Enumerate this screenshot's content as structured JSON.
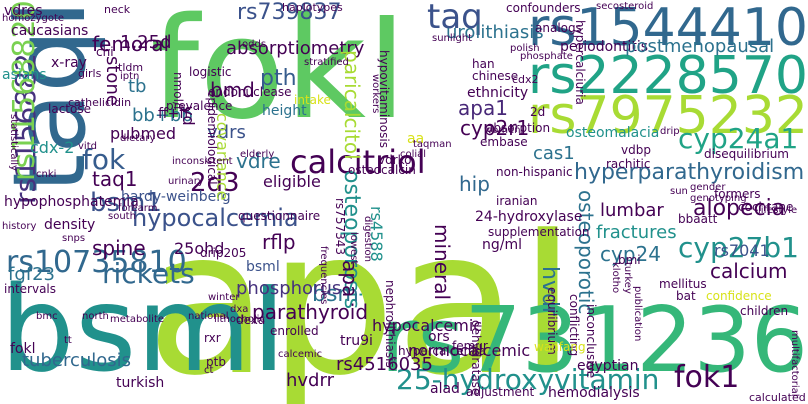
{
  "words": [
    {
      "text": "apaI",
      "color": "#a8db34"
    },
    {
      "text": "fokI",
      "color": "#5ec962"
    },
    {
      "text": "bsmI",
      "color": "#21918c"
    },
    {
      "text": "taqI",
      "color": "#31688e"
    },
    {
      "text": "rs731236",
      "color": "#35b779"
    },
    {
      "text": "rs1544410",
      "color": "#31688e"
    },
    {
      "text": "rs2228570",
      "color": "#20a386"
    },
    {
      "text": "rs7975232",
      "color": "#a8db34"
    },
    {
      "text": "calcitriol",
      "color": "#440154"
    },
    {
      "text": "25-hydroxyvitamin",
      "color": "#21918c"
    },
    {
      "text": "fok1",
      "color": "#440154"
    },
    {
      "text": "rs10735810",
      "color": "#31688e"
    },
    {
      "text": "rs1156882",
      "color": "#46327e"
    },
    {
      "text": "rs11568820",
      "color": "#7ad151"
    },
    {
      "text": "rickets",
      "color": "#31688e"
    },
    {
      "text": "cyp27b1",
      "color": "#21918c"
    },
    {
      "text": "cyp24a1",
      "color": "#20a386"
    },
    {
      "text": "alopecia",
      "color": "#440154"
    },
    {
      "text": "hyperparathyroidism",
      "color": "#31688e"
    },
    {
      "text": "taq",
      "color": "#3b528b"
    },
    {
      "text": "fok",
      "color": "#365c8d"
    },
    {
      "text": "2d3",
      "color": "#440154"
    },
    {
      "text": "bsm1",
      "color": "#3b528b"
    },
    {
      "text": "hypocalcemia",
      "color": "#3b528b"
    },
    {
      "text": "osteoporosis",
      "color": "#21918c"
    },
    {
      "text": "absorptiometry",
      "color": "#440154"
    },
    {
      "text": "paricalcitol",
      "color": "#a8db34"
    },
    {
      "text": "bsm",
      "color": "#2c728e"
    },
    {
      "text": "parathyroid",
      "color": "#440154"
    },
    {
      "text": "phosphorus",
      "color": "#46327e"
    },
    {
      "text": "tuberculosis",
      "color": "#31688e"
    },
    {
      "text": "rs4516035",
      "color": "#440154"
    },
    {
      "text": "hvdrr",
      "color": "#440154"
    },
    {
      "text": "apa1",
      "color": "#482878"
    },
    {
      "text": "apa",
      "color": "#440154"
    },
    {
      "text": "pth",
      "color": "#365c8d"
    },
    {
      "text": "bmd",
      "color": "#440154"
    },
    {
      "text": "femoral",
      "color": "#440154"
    },
    {
      "text": "1,25d",
      "color": "#440154"
    },
    {
      "text": "rs739837",
      "color": "#3b528b"
    },
    {
      "text": "urolithiasis",
      "color": "#2c728e"
    },
    {
      "text": "periodontitis",
      "color": "#440154"
    },
    {
      "text": "postmenopausal",
      "color": "#2c728e"
    },
    {
      "text": "cyp2r1",
      "color": "#440154"
    },
    {
      "text": "osteomalacia",
      "color": "#21918c"
    },
    {
      "text": "calcium",
      "color": "#440154"
    },
    {
      "text": "rs7041",
      "color": "#3b528b"
    },
    {
      "text": "fractures",
      "color": "#21918c"
    },
    {
      "text": "lumbar",
      "color": "#440154"
    },
    {
      "text": "cyp24",
      "color": "#2c728e"
    },
    {
      "text": "rs4588",
      "color": "#21918c"
    },
    {
      "text": "osteoporotic",
      "color": "#2c728e"
    },
    {
      "text": "vdrs",
      "color": "#3b528b"
    },
    {
      "text": "vdre",
      "color": "#2c728e"
    },
    {
      "text": "taq1",
      "color": "#440154"
    },
    {
      "text": "spine",
      "color": "#440154"
    },
    {
      "text": "rflp",
      "color": "#440154"
    },
    {
      "text": "hip",
      "color": "#31688e"
    },
    {
      "text": "mineral",
      "color": "#440154"
    },
    {
      "text": "eligible",
      "color": "#440154"
    },
    {
      "text": "hardy-weinberg",
      "color": "#3b528b"
    },
    {
      "text": "hypocalcemic",
      "color": "#440154"
    },
    {
      "text": "normocalcemic",
      "color": "#440154"
    },
    {
      "text": "fgf23",
      "color": "#2c728e"
    },
    {
      "text": "25ohd",
      "color": "#440154"
    },
    {
      "text": "bsml",
      "color": "#3b528b"
    },
    {
      "text": "tru9i",
      "color": "#440154"
    },
    {
      "text": "stone",
      "color": "#440154"
    },
    {
      "text": "tb",
      "color": "#2c728e"
    },
    {
      "text": "bb+bb",
      "color": "#2c728e"
    },
    {
      "text": "pubmed",
      "color": "#440154"
    },
    {
      "text": "ff+ff",
      "color": "#440154"
    },
    {
      "text": "vd",
      "color": "#440154"
    },
    {
      "text": "cdx-2",
      "color": "#21918c"
    },
    {
      "text": "caucasians",
      "color": "#440154"
    },
    {
      "text": "asians",
      "color": "#21918c"
    },
    {
      "text": "vdres",
      "color": "#440154"
    },
    {
      "text": "cas1",
      "color": "#2c728e"
    },
    {
      "text": "vdbp",
      "color": "#440154"
    },
    {
      "text": "rachitic",
      "color": "#440154"
    },
    {
      "text": "24-hydroxylase",
      "color": "#440154"
    },
    {
      "text": "ethnicity",
      "color": "#440154"
    },
    {
      "text": "height",
      "color": "#2c728e"
    },
    {
      "text": "embase",
      "color": "#440154"
    },
    {
      "text": "non-hispanic",
      "color": "#440154"
    },
    {
      "text": "dexa",
      "color": "#440154"
    },
    {
      "text": "ng/ml",
      "color": "#440154"
    },
    {
      "text": "alad",
      "color": "#440154"
    },
    {
      "text": "hemodialysis",
      "color": "#440154"
    },
    {
      "text": "egyptian",
      "color": "#440154"
    },
    {
      "text": "ors",
      "color": "#440154"
    },
    {
      "text": "turkish",
      "color": "#440154"
    },
    {
      "text": "ptb",
      "color": "#440154"
    },
    {
      "text": "x-ray",
      "color": "#440154"
    },
    {
      "text": "rs757343",
      "color": "#440154"
    },
    {
      "text": "logistic",
      "color": "#440154"
    },
    {
      "text": "haplotypes",
      "color": "#440154"
    },
    {
      "text": "confounders",
      "color": "#440154"
    },
    {
      "text": "hypercalciuria",
      "color": "#440154"
    },
    {
      "text": "covariance",
      "color": "#a8db34"
    },
    {
      "text": "questionnaire",
      "color": "#440154"
    },
    {
      "text": "supplementation",
      "color": "#440154"
    },
    {
      "text": "hypophosphatemia",
      "color": "#440154"
    },
    {
      "text": "density",
      "color": "#440154"
    },
    {
      "text": "vdrko",
      "color": "#440154"
    },
    {
      "text": "osteocalcin",
      "color": "#440154"
    },
    {
      "text": "drip205",
      "color": "#440154"
    },
    {
      "text": "nephrolithiasis",
      "color": "#440154"
    },
    {
      "text": "hypercalcemia",
      "color": "#440154"
    },
    {
      "text": "hvdr",
      "color": "#2c728e"
    },
    {
      "text": "mellitus",
      "color": "#440154"
    },
    {
      "text": "bat",
      "color": "#440154"
    },
    {
      "text": "children",
      "color": "#440154"
    },
    {
      "text": "femur",
      "color": "#440154"
    },
    {
      "text": "dehydratase",
      "color": "#440154"
    },
    {
      "text": "inconclusive",
      "color": "#440154"
    },
    {
      "text": "conflicting",
      "color": "#440154"
    },
    {
      "text": "equilibrium",
      "color": "#440154"
    },
    {
      "text": "disequilibrium",
      "color": "#440154"
    },
    {
      "text": "adjustment",
      "color": "#440154"
    },
    {
      "text": "wanfang",
      "color": "#d8e219"
    },
    {
      "text": "cochrane",
      "color": "#440154"
    },
    {
      "text": "formers",
      "color": "#440154"
    },
    {
      "text": "bbaatt",
      "color": "#440154"
    },
    {
      "text": "confidence",
      "color": "#d8e219"
    },
    {
      "text": "aa",
      "color": "#d8e219"
    },
    {
      "text": "lactose",
      "color": "#440154"
    },
    {
      "text": "homozygote",
      "color": "#440154"
    },
    {
      "text": "neck",
      "color": "#440154"
    },
    {
      "text": "secosteroid",
      "color": "#440154"
    },
    {
      "text": "han",
      "color": "#440154"
    },
    {
      "text": "chinese",
      "color": "#440154"
    },
    {
      "text": "polish",
      "color": "#440154"
    },
    {
      "text": "phosphate",
      "color": "#440154"
    },
    {
      "text": "cdx2",
      "color": "#440154"
    },
    {
      "text": "prevalence",
      "color": "#440154"
    },
    {
      "text": "epidemiological",
      "color": "#440154"
    },
    {
      "text": "intake",
      "color": "#d8e219"
    },
    {
      "text": "stratified",
      "color": "#440154"
    },
    {
      "text": "elderly",
      "color": "#440154"
    },
    {
      "text": "colial",
      "color": "#440154"
    },
    {
      "text": "cathelicidin",
      "color": "#440154"
    },
    {
      "text": "tldm",
      "color": "#440154"
    },
    {
      "text": "girls",
      "color": "#440154"
    },
    {
      "text": "iptn",
      "color": "#440154"
    },
    {
      "text": "chi",
      "color": "#440154"
    },
    {
      "text": "nmol/l",
      "color": "#440154"
    },
    {
      "text": "endonuclease",
      "color": "#440154"
    },
    {
      "text": "absorption",
      "color": "#440154"
    },
    {
      "text": "women",
      "color": "#440154"
    },
    {
      "text": "taqman",
      "color": "#440154"
    },
    {
      "text": "odds",
      "color": "#440154"
    },
    {
      "text": "sunlight",
      "color": "#440154"
    },
    {
      "text": "analogs",
      "color": "#440154"
    },
    {
      "text": "hypovitaminosis",
      "color": "#440154"
    },
    {
      "text": "workers",
      "color": "#440154"
    },
    {
      "text": "2d",
      "color": "#440154"
    },
    {
      "text": "drip",
      "color": "#440154"
    },
    {
      "text": "gender",
      "color": "#440154"
    },
    {
      "text": "genotyping",
      "color": "#440154"
    },
    {
      "text": "sun",
      "color": "#440154"
    },
    {
      "text": "lifestyle",
      "color": "#440154"
    },
    {
      "text": "iranian",
      "color": "#440154"
    },
    {
      "text": "cnki",
      "color": "#440154"
    },
    {
      "text": "urinary",
      "color": "#440154"
    },
    {
      "text": "inconsistent",
      "color": "#440154"
    },
    {
      "text": "dietary",
      "color": "#440154"
    },
    {
      "text": "south",
      "color": "#440154"
    },
    {
      "text": "history",
      "color": "#440154"
    },
    {
      "text": "forearm",
      "color": "#440154"
    },
    {
      "text": "snps",
      "color": "#440154"
    },
    {
      "text": "intervals",
      "color": "#440154"
    },
    {
      "text": "winter",
      "color": "#440154"
    },
    {
      "text": "dxa",
      "color": "#440154"
    },
    {
      "text": "lithocholic",
      "color": "#440154"
    },
    {
      "text": "national",
      "color": "#440154"
    },
    {
      "text": "enrolled",
      "color": "#440154"
    },
    {
      "text": "bmc",
      "color": "#440154"
    },
    {
      "text": "north",
      "color": "#440154"
    },
    {
      "text": "metabolite",
      "color": "#440154"
    },
    {
      "text": "rxr",
      "color": "#440154"
    },
    {
      "text": "calcemic",
      "color": "#440154"
    },
    {
      "text": "ct",
      "color": "#440154"
    },
    {
      "text": "frequencies",
      "color": "#440154"
    },
    {
      "text": "lowest",
      "color": "#440154"
    },
    {
      "text": "digestion",
      "color": "#440154"
    },
    {
      "text": "klotho",
      "color": "#440154"
    },
    {
      "text": "turkey",
      "color": "#440154"
    },
    {
      "text": "bmi",
      "color": "#440154"
    },
    {
      "text": "publication",
      "color": "#440154"
    },
    {
      "text": "multifactorial",
      "color": "#440154"
    },
    {
      "text": "calculated",
      "color": "#440154"
    },
    {
      "text": "statistically",
      "color": "#440154"
    },
    {
      "text": "vitd",
      "color": "#440154"
    },
    {
      "text": "fokl",
      "color": "#440154"
    },
    {
      "text": "tt",
      "color": "#440154"
    }
  ]
}
